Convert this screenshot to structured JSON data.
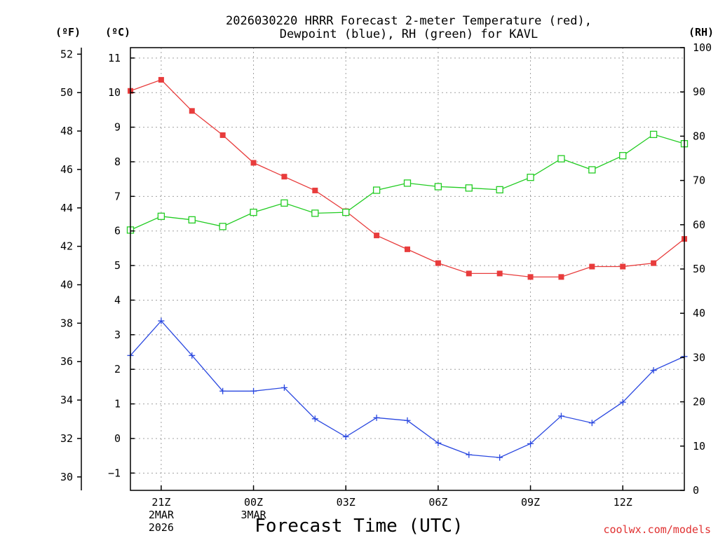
{
  "chart_data": {
    "type": "line",
    "title": "2026030220 HRRR Forecast 2-meter Temperature (red),",
    "title_line2": "Dewpoint (blue), RH (green) for KAVL",
    "xlabel": "Forecast Time (UTC)",
    "credit": "coolwx.com/models",
    "unit_labels": {
      "fahrenheit": "(ºF)",
      "celsius": "(ºC)",
      "rh": "(RH)"
    },
    "x_hours": [
      20,
      21,
      22,
      23,
      24,
      25,
      26,
      27,
      28,
      29,
      30,
      31,
      32,
      33,
      34,
      35,
      36,
      37,
      38
    ],
    "xlim": [
      20,
      38
    ],
    "x_ticks": [
      {
        "hour": 21,
        "label": "21Z",
        "sub1": "2MAR",
        "sub2": "2026"
      },
      {
        "hour": 24,
        "label": "00Z",
        "sub1": "3MAR",
        "sub2": ""
      },
      {
        "hour": 27,
        "label": "03Z",
        "sub1": "",
        "sub2": ""
      },
      {
        "hour": 30,
        "label": "06Z",
        "sub1": "",
        "sub2": ""
      },
      {
        "hour": 33,
        "label": "09Z",
        "sub1": "",
        "sub2": ""
      },
      {
        "hour": 36,
        "label": "12Z",
        "sub1": "",
        "sub2": ""
      }
    ],
    "celsius_axis": {
      "min": -1.5,
      "max": 11.3,
      "ticks": [
        -1,
        0,
        1,
        2,
        3,
        4,
        5,
        6,
        7,
        8,
        9,
        10,
        11
      ]
    },
    "fahrenheit_axis": {
      "ticks": [
        30,
        32,
        34,
        36,
        38,
        40,
        42,
        44,
        46,
        48,
        50,
        52
      ]
    },
    "rh_axis": {
      "min": 0,
      "max": 100,
      "ticks": [
        0,
        10,
        20,
        30,
        40,
        50,
        60,
        70,
        80,
        90,
        100
      ]
    },
    "series": [
      {
        "name": "Temperature",
        "axis": "celsius",
        "color": "#e83c3c",
        "marker": "filled-square",
        "values": [
          10.05,
          10.37,
          9.47,
          8.77,
          7.97,
          7.57,
          7.17,
          6.57,
          5.87,
          5.47,
          5.07,
          4.77,
          4.77,
          4.67,
          4.67,
          4.97,
          4.97,
          5.07,
          5.77
        ]
      },
      {
        "name": "Dewpoint",
        "axis": "celsius",
        "color": "#2a48e0",
        "marker": "plus",
        "values": [
          2.4,
          3.4,
          2.4,
          1.37,
          1.37,
          1.47,
          0.57,
          0.05,
          0.6,
          0.52,
          -0.13,
          -0.47,
          -0.55,
          -0.15,
          0.65,
          0.45,
          1.05,
          1.97,
          2.37
        ]
      },
      {
        "name": "RH",
        "axis": "rh",
        "color": "#22cc22",
        "marker": "open-square",
        "values": [
          58.8,
          61.9,
          61.1,
          59.6,
          62.8,
          64.9,
          62.6,
          62.8,
          67.8,
          69.4,
          68.6,
          68.3,
          67.9,
          70.7,
          74.9,
          72.4,
          75.6,
          80.4,
          78.3
        ]
      }
    ]
  }
}
